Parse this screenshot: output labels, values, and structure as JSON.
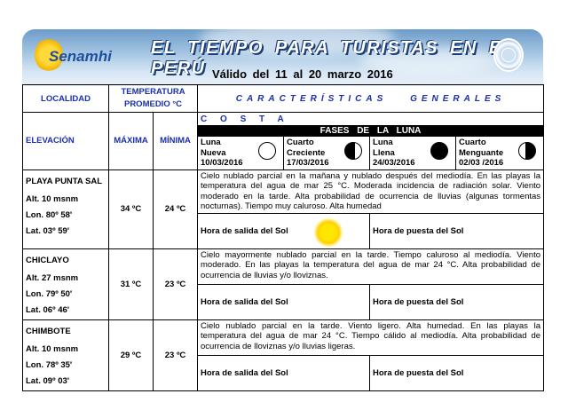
{
  "header": {
    "logo_text": "Senamhi",
    "title": "EL TIEMPO PARA TURISTAS EN EL PERÚ",
    "validity": "Válido del 11 al 20 marzo 2016"
  },
  "table": {
    "col_locality": "LOCALIDAD",
    "col_temperature": "TEMPERATURA PROMEDIO °C",
    "col_characteristics": "CARACTERÍSTICAS GENERALES",
    "col_elevation": "ELEVACIÓN",
    "col_max": "MÁXIMA",
    "col_min": "MÍNIMA"
  },
  "region": "C O S T A",
  "moon_phases": {
    "title": "FASES DE LA LUNA",
    "phases": [
      {
        "line1": "Luna",
        "line2": "Nueva",
        "date": "10/03/2016",
        "icon": "new-moon-icon"
      },
      {
        "line1": "Cuarto",
        "line2": "Creciente",
        "date": "17/03/2016",
        "icon": "first-quarter-icon"
      },
      {
        "line1": "Luna",
        "line2": "Llena",
        "date": "24/03/2016",
        "icon": "full-moon-icon"
      },
      {
        "line1": "Cuarto",
        "line2": "Menguante",
        "date": "02/03 /2016",
        "icon": "last-quarter-icon"
      }
    ]
  },
  "sunrise_label": "Hora de salida del Sol",
  "sunset_label": "Hora de puesta del Sol",
  "locations": [
    {
      "name": "PLAYA PUNTA SAL",
      "alt": "Alt.   10  msnm",
      "lon": "Lon.  80º 58'",
      "lat": "Lat.  03º 59'",
      "max": "34 ºC",
      "min": "24 ºC",
      "description": "Cielo  nublado parcial en la mañana y nublado  después del mediodía. En las playas la temperatura del agua de mar  25 °C. Moderada incidencia de radiación solar. Viento moderado en la tarde. Alta   probabilidad de ocurrencia de lluvias (algunas tormentas nocturnas).  Tiempo muy caluroso.  Alta humedad"
    },
    {
      "name": "CHICLAYO",
      "alt": "Alt.   27  msnm",
      "lon": "Lon.  79º 50'",
      "lat": "Lat.  06º 46'",
      "max": "31 ºC",
      "min": "23 ºC",
      "description": "Cielo mayormente   nublado parcial en la tarde. Tiempo caluroso al mediodía. Viento moderado. En las playas la temperatura del agua de mar 24 °C. Alta probabilidad de ocurrencia de lluvias  y/o  lloviznas."
    },
    {
      "name": "CHIMBOTE",
      "alt": "Alt.   10  msnm",
      "lon": "Lon.  78º 35'",
      "lat": "Lat.  09º 03'",
      "max": "29 ºC",
      "min": "23 ºC",
      "description": "Cielo   nublado parcial  en la tarde. Viento ligero. Alta humedad. En las playas la temperatura del agua de mar 24 °C. Tiempo cálido al mediodía. Alta   probabilidad de ocurrencia de lloviznas y/o lluvias ligeras."
    }
  ]
}
